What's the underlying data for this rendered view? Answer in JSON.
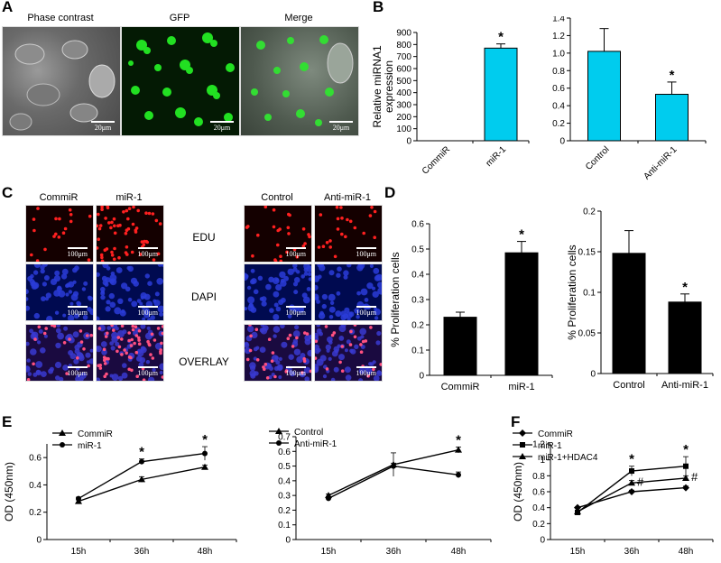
{
  "panel_labels": {
    "A": "A",
    "B": "B",
    "C": "C",
    "D": "D",
    "E": "E",
    "F": "F"
  },
  "panelA": {
    "titles": [
      "Phase contrast",
      "GFP",
      "Merge"
    ],
    "scale_text": "20μm"
  },
  "panelC": {
    "col_headers_left": [
      "CommiR",
      "miR-1"
    ],
    "col_headers_right": [
      "Control",
      "Anti-miR-1"
    ],
    "row_labels": [
      "EDU",
      "DAPI",
      "OVERLAY"
    ],
    "scale_text": "100μm"
  },
  "chart_data": [
    {
      "id": "B-left",
      "type": "bar",
      "categories": [
        "CommiR",
        "miR-1"
      ],
      "values": [
        0,
        770
      ],
      "errors": [
        0,
        35
      ],
      "significance": [
        "",
        "*"
      ],
      "ylabel": "Relative miRNA1 expression",
      "ylim": [
        0,
        900
      ],
      "yticks": [
        0,
        100,
        200,
        300,
        400,
        500,
        600,
        700,
        800,
        900
      ],
      "bar_color": "#00ccee"
    },
    {
      "id": "B-right",
      "type": "bar",
      "categories": [
        "Control",
        "Anti-miR-1"
      ],
      "values": [
        1.02,
        0.53
      ],
      "errors": [
        0.26,
        0.14
      ],
      "significance": [
        "",
        "*"
      ],
      "ylim": [
        0,
        1.4
      ],
      "yticks": [
        "0",
        "0.2",
        "0.4",
        "0.6",
        "0.8",
        "1.0",
        "1.2",
        "1.4"
      ],
      "bar_color": "#00ccee"
    },
    {
      "id": "D-left",
      "type": "bar",
      "categories": [
        "CommiR",
        "miR-1"
      ],
      "values": [
        0.23,
        0.485
      ],
      "errors": [
        0.02,
        0.045
      ],
      "significance": [
        "",
        "*"
      ],
      "ylabel": "% Proliferation cells",
      "ylim": [
        0,
        0.6
      ],
      "yticks": [
        "0",
        "0.1",
        "0.2",
        "0.3",
        "0.4",
        "0.5",
        "0.6"
      ],
      "bar_color": "#000000"
    },
    {
      "id": "D-right",
      "type": "bar",
      "categories": [
        "Control",
        "Anti-miR-1"
      ],
      "values": [
        0.148,
        0.088
      ],
      "errors": [
        0.028,
        0.01
      ],
      "significance": [
        "",
        "*"
      ],
      "ylabel": "% Proliferation cells",
      "ylim": [
        0,
        0.2
      ],
      "yticks": [
        "0",
        "0.05",
        "0.1",
        "0.15",
        "0.2"
      ],
      "bar_color": "#000000"
    },
    {
      "id": "E-left",
      "type": "line",
      "x": [
        "15h",
        "36h",
        "48h"
      ],
      "ylabel": "OD (450nm)",
      "ylim": [
        0,
        0.7
      ],
      "yticks": [
        "0",
        "0.2",
        "0.4",
        "0.6"
      ],
      "series": [
        {
          "name": "CommiR",
          "marker": "triangle",
          "values": [
            0.28,
            0.44,
            0.53
          ],
          "errors": [
            0.01,
            0.02,
            0.015
          ]
        },
        {
          "name": "miR-1",
          "marker": "circle",
          "values": [
            0.3,
            0.57,
            0.63
          ],
          "errors": [
            0.01,
            0.02,
            0.05
          ]
        }
      ],
      "annotations": [
        {
          "x": "36h",
          "text": "*"
        },
        {
          "x": "48h",
          "text": "*"
        }
      ],
      "legend": "top-left"
    },
    {
      "id": "E-right",
      "type": "line",
      "x": [
        "15h",
        "36h",
        "48h"
      ],
      "ylim": [
        0,
        0.7
      ],
      "yticks": [
        "0",
        "0.1",
        "0.2",
        "0.3",
        "0.4",
        "0.5",
        "0.6",
        "0.7"
      ],
      "series": [
        {
          "name": "Control",
          "marker": "triangle",
          "values": [
            0.3,
            0.51,
            0.61
          ],
          "errors": [
            0.01,
            0.08,
            0.02
          ]
        },
        {
          "name": "Anti-miR-1",
          "marker": "circle",
          "values": [
            0.28,
            0.5,
            0.44
          ],
          "errors": [
            0.01,
            0.02,
            0.02
          ]
        }
      ],
      "annotations": [
        {
          "x": "48h",
          "text": "*"
        }
      ],
      "legend": "top-left"
    },
    {
      "id": "F",
      "type": "line",
      "x": [
        "15h",
        "36h",
        "48h"
      ],
      "ylabel": "OD (450nm)",
      "ylim": [
        0,
        1.2
      ],
      "yticks": [
        "0",
        "0.2",
        "0.4",
        "0.6",
        "0.8",
        "1",
        "1.2"
      ],
      "series": [
        {
          "name": "CommiR",
          "marker": "diamond",
          "values": [
            0.4,
            0.6,
            0.65
          ],
          "errors": [
            0.01,
            0.02,
            0.02
          ]
        },
        {
          "name": "miR-1",
          "marker": "square",
          "values": [
            0.34,
            0.86,
            0.92
          ],
          "errors": [
            0.01,
            0.06,
            0.12
          ]
        },
        {
          "name": "miR-1+HDAC4",
          "marker": "triangle",
          "values": [
            0.35,
            0.71,
            0.77
          ],
          "errors": [
            0.01,
            0.03,
            0.03
          ]
        }
      ],
      "annotations": [
        {
          "x": "36h",
          "text": "*",
          "side": "top"
        },
        {
          "x": "48h",
          "text": "*",
          "side": "top"
        },
        {
          "x": "36h",
          "text": "#",
          "side": "right"
        },
        {
          "x": "48h",
          "text": "#",
          "side": "right"
        }
      ],
      "legend": "top-left"
    }
  ]
}
